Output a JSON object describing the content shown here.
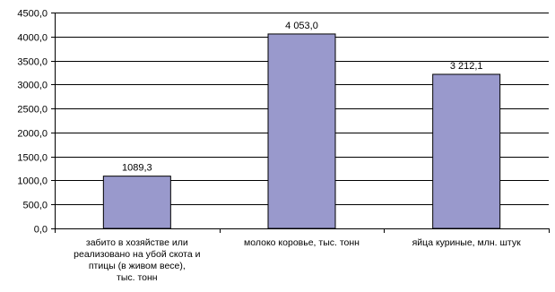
{
  "chart_data": {
    "type": "bar",
    "title": "",
    "xlabel": "",
    "ylabel": "",
    "ylim": [
      0,
      4500
    ],
    "grid": true,
    "legend": "none",
    "y_ticks": [
      "0,0",
      "500,0",
      "1000,0",
      "1500,0",
      "2000,0",
      "2500,0",
      "3000,0",
      "3500,0",
      "4000,0",
      "4500,0"
    ],
    "y_tick_values": [
      0,
      500,
      1000,
      1500,
      2000,
      2500,
      3000,
      3500,
      4000,
      4500
    ],
    "categories": [
      [
        "забито в хозяйстве или",
        "реализовано на убой скота и",
        "птицы (в живом весе),",
        "тыс. тонн"
      ],
      [
        "молоко коровье, тыс. тонн"
      ],
      [
        "яйца куриные, млн. штук"
      ]
    ],
    "values": [
      1089.3,
      4053.0,
      3212.1
    ],
    "data_labels": [
      "1089,3",
      "4 053,0",
      "3 212,1"
    ],
    "bar_color": "#9999cc",
    "grid_color": "#000000"
  }
}
